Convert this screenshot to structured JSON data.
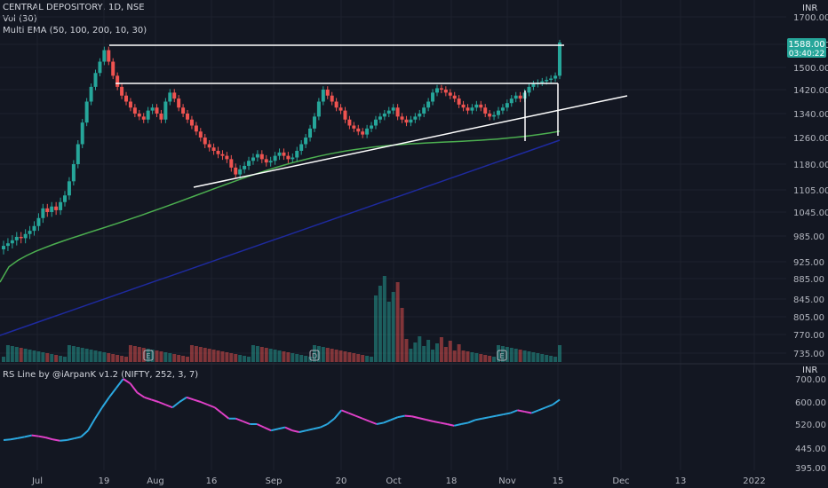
{
  "header": {
    "symbol": "CENTRAL DEPOSITORY, 1D, NSE",
    "volume": "Vol (30)",
    "ema": "Multi EMA (50, 100, 200, 10, 30)",
    "currency": "INR"
  },
  "price_badge": {
    "price": "1588.00",
    "countdown": "03:40:22"
  },
  "rs_pane": {
    "title": "RS Line by @iArpanK v1.2 (NIFTY, 252, 3, 7)",
    "currency": "INR"
  },
  "colors": {
    "bull": "#26a69a",
    "bear": "#ef5350",
    "ema_fast": "#4caf50",
    "ema_slow": "#1e2a9e",
    "rs_up": "#2ba8e0",
    "rs_down": "#e040c8",
    "grid": "#1e222d",
    "background": "#131722"
  },
  "chart_data": [
    {
      "type": "candlestick",
      "title": "CENTRAL DEPOSITORY, 1D, NSE",
      "ylabel": "INR",
      "y_ticks": [
        1700,
        1580,
        1500,
        1420,
        1340,
        1260,
        1180,
        1105,
        1045,
        985,
        925,
        885,
        845,
        805,
        770,
        735
      ],
      "x_ticks": [
        "Jul",
        "19",
        "Aug",
        "16",
        "Sep",
        "20",
        "Oct",
        "18",
        "Nov",
        "15",
        "Dec",
        "13",
        "2022"
      ],
      "close": [
        962,
        968,
        975,
        983,
        980,
        990,
        998,
        1010,
        1030,
        1055,
        1045,
        1060,
        1050,
        1072,
        1090,
        1130,
        1180,
        1240,
        1310,
        1380,
        1430,
        1480,
        1520,
        1560,
        1520,
        1470,
        1430,
        1400,
        1380,
        1360,
        1340,
        1330,
        1320,
        1350,
        1360,
        1340,
        1320,
        1380,
        1410,
        1390,
        1360,
        1340,
        1320,
        1300,
        1280,
        1260,
        1240,
        1230,
        1220,
        1210,
        1205,
        1195,
        1170,
        1150,
        1165,
        1175,
        1190,
        1200,
        1210,
        1195,
        1185,
        1190,
        1205,
        1215,
        1205,
        1195,
        1200,
        1220,
        1240,
        1260,
        1290,
        1330,
        1380,
        1420,
        1400,
        1380,
        1360,
        1350,
        1320,
        1300,
        1290,
        1280,
        1270,
        1290,
        1300,
        1320,
        1330,
        1340,
        1350,
        1360,
        1330,
        1320,
        1310,
        1320,
        1330,
        1340,
        1360,
        1380,
        1410,
        1425,
        1420,
        1410,
        1400,
        1390,
        1370,
        1360,
        1350,
        1360,
        1370,
        1360,
        1340,
        1330,
        1335,
        1350,
        1360,
        1375,
        1390,
        1400,
        1390,
        1410,
        1430,
        1440,
        1445,
        1450,
        1455,
        1460,
        1470,
        1588
      ],
      "volume_peak_text": "",
      "resistance_level": 1572,
      "inner_resistance": 1450
    },
    {
      "type": "line",
      "title": "RS Line by @iArpanK v1.2 (NIFTY, 252, 3, 7)",
      "ylabel": "INR",
      "y_ticks": [
        700,
        600,
        520,
        445,
        395
      ],
      "values": [
        470,
        472,
        476,
        480,
        485,
        482,
        478,
        472,
        468,
        470,
        475,
        480,
        500,
        540,
        580,
        620,
        660,
        700,
        680,
        640,
        620,
        610,
        600,
        590,
        580,
        600,
        620,
        610,
        600,
        590,
        580,
        560,
        540,
        540,
        530,
        520,
        520,
        510,
        500,
        505,
        510,
        500,
        495,
        500,
        505,
        510,
        520,
        540,
        570,
        560,
        550,
        540,
        530,
        520,
        525,
        535,
        545,
        550,
        548,
        542,
        536,
        530,
        525,
        520,
        515,
        520,
        525,
        535,
        540,
        545,
        550,
        555,
        560,
        570,
        565,
        560,
        570,
        580,
        590,
        610
      ]
    }
  ]
}
